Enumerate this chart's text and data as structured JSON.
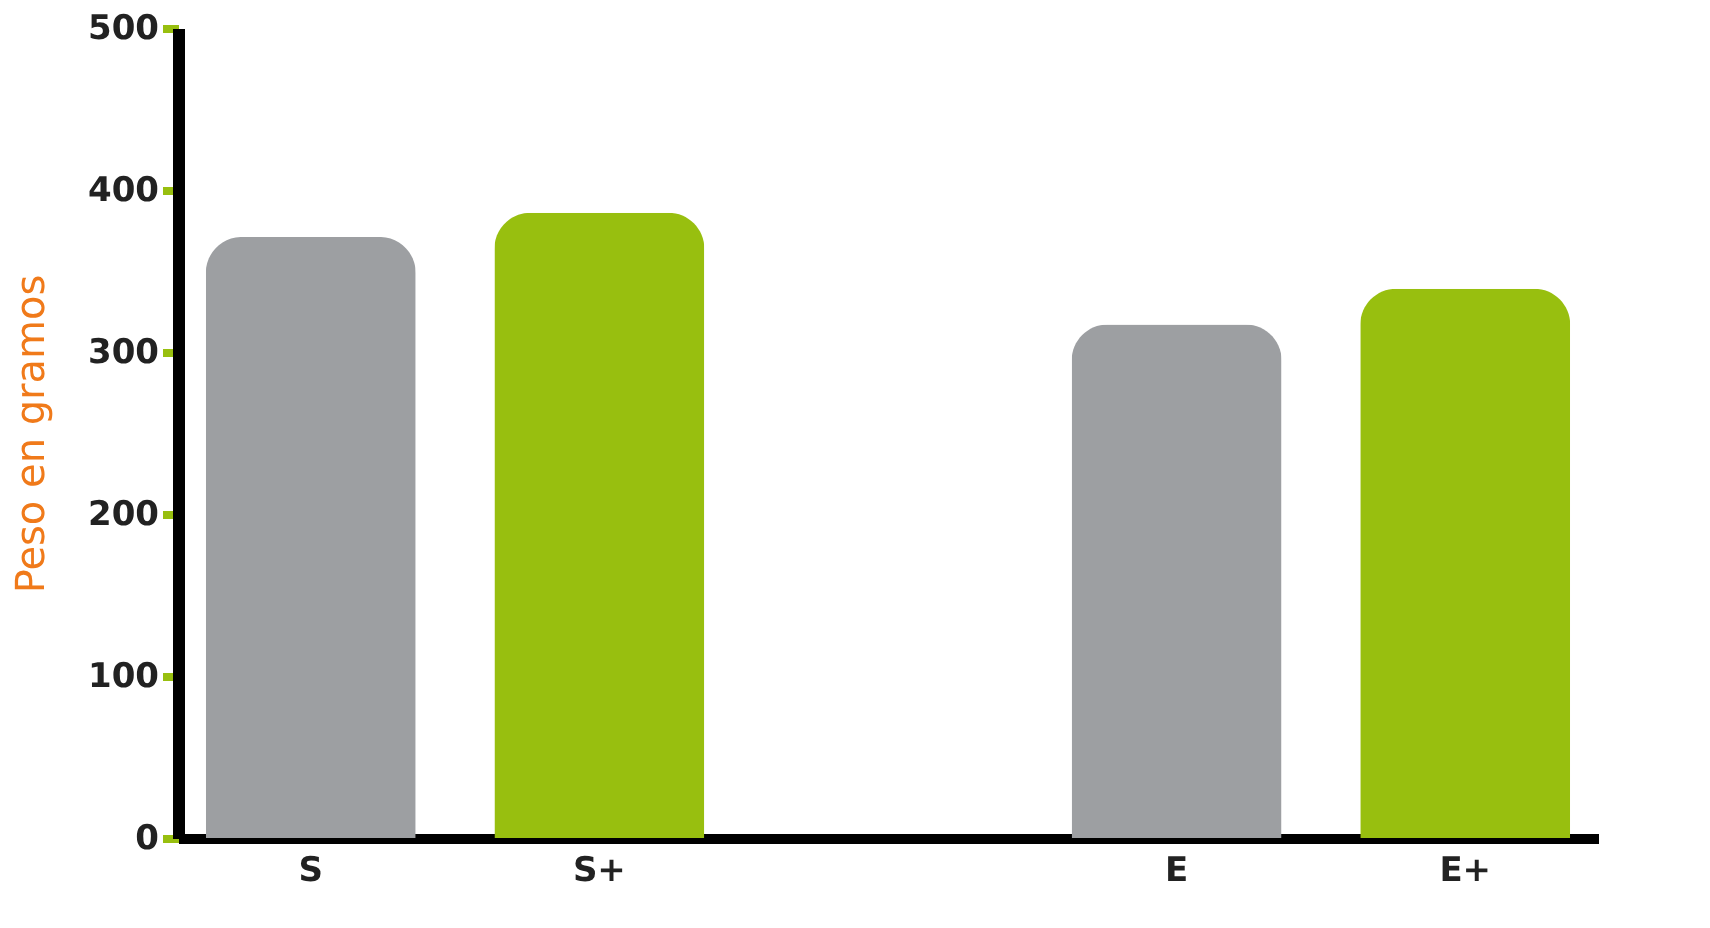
{
  "chart_data": {
    "type": "bar",
    "ylabel": "Peso en gramos",
    "categories": [
      "S",
      "S+",
      null,
      "E",
      "E+"
    ],
    "values": [
      371,
      386,
      null,
      317,
      339
    ],
    "colors": [
      "#9d9fa2",
      "#98bf0f",
      "#9d9fa2",
      "#9d9fa2",
      "#98bf0f"
    ],
    "ylim": [
      0,
      500
    ],
    "yticks": [
      0,
      100,
      200,
      300,
      400,
      500
    ],
    "grid": false
  }
}
